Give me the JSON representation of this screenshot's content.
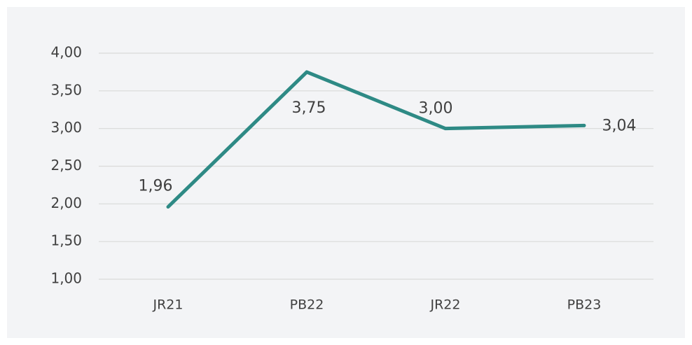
{
  "chart_data": {
    "type": "line",
    "categories": [
      "JR21",
      "PB22",
      "JR22",
      "PB23"
    ],
    "series": [
      {
        "color": "#2e8a85",
        "values": [
          1.96,
          3.75,
          3.0,
          3.04
        ],
        "value_labels": [
          "1,96",
          "3,75",
          "3,00",
          "3,04"
        ]
      }
    ],
    "ylim": [
      1,
      4
    ],
    "yticks": [
      {
        "value": 1,
        "label": "1,00"
      },
      {
        "value": 1.5,
        "label": "1,50"
      },
      {
        "value": 2,
        "label": "2,00"
      },
      {
        "value": 2.5,
        "label": "2,50"
      },
      {
        "value": 3,
        "label": "3,00"
      },
      {
        "value": 3.5,
        "label": "3,50"
      },
      {
        "value": 4,
        "label": "4,00"
      }
    ],
    "grid": true
  }
}
